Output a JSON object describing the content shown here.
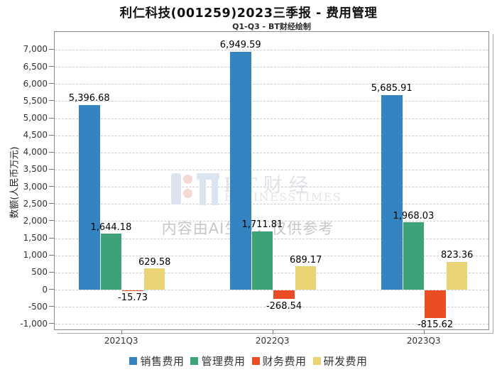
{
  "watermark": {
    "brand_zh": "BT财经",
    "brand_en": "BUSINESSTIMES",
    "disclaimer": "内容由AI生成，仅供参考"
  },
  "chart_data": {
    "type": "bar",
    "title": "利仁科技(001259)2023三季报 - 费用管理",
    "subtitle": "Q1-Q3 - BT财经绘制",
    "ylabel": "数额(人民币万元)",
    "xlabel": "",
    "categories": [
      "2021Q3",
      "2022Q3",
      "2023Q3"
    ],
    "series": [
      {
        "name": "销售费用",
        "color": "#3484c2",
        "values": [
          5396.68,
          6949.59,
          5685.91
        ]
      },
      {
        "name": "管理费用",
        "color": "#3da277",
        "values": [
          1644.18,
          1711.81,
          1968.03
        ]
      },
      {
        "name": "财务费用",
        "color": "#ea4d26",
        "values": [
          -15.73,
          -268.54,
          -815.62
        ]
      },
      {
        "name": "研发费用",
        "color": "#e9d374",
        "values": [
          629.58,
          689.17,
          823.36
        ]
      }
    ],
    "yticks": [
      -1000,
      -500,
      0,
      500,
      1000,
      1500,
      2000,
      2500,
      3000,
      3500,
      4000,
      4500,
      5000,
      5500,
      6000,
      6500,
      7000
    ],
    "ylim": [
      -1180,
      7525
    ],
    "grid": "horizontal-dashed",
    "legend_position": "bottom",
    "bar_label_format": "#,##0.00"
  }
}
